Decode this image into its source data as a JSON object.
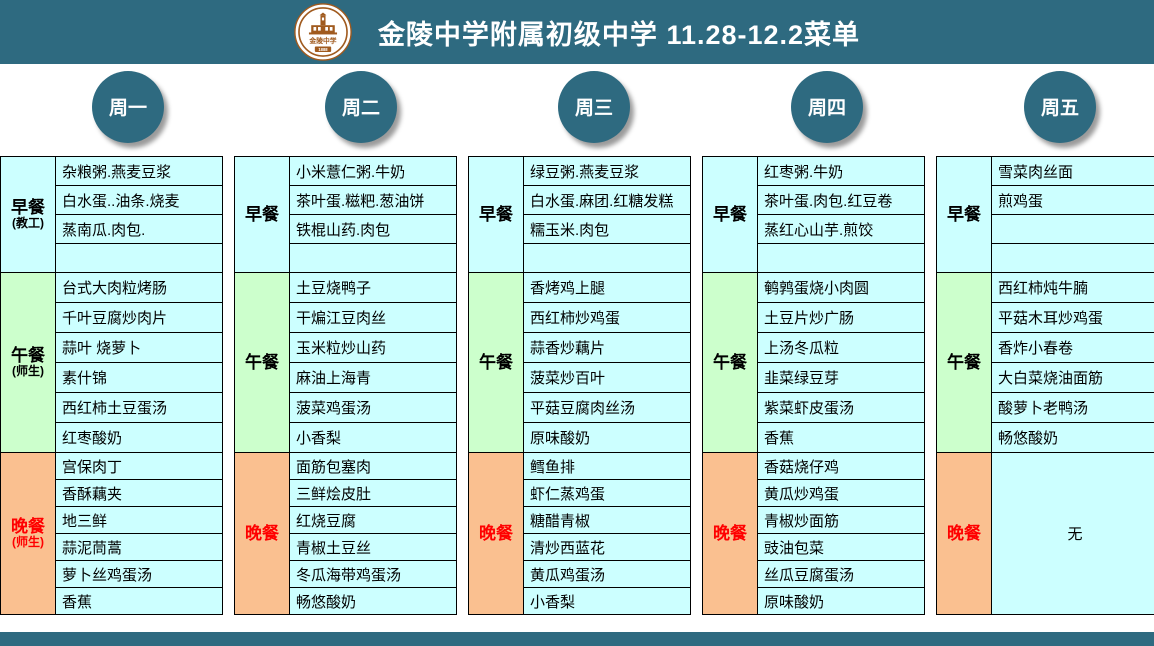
{
  "header": {
    "title": "金陵中学附属初级中学 11.28-12.2菜单"
  },
  "logo": {
    "name": "金陵中学",
    "year": "1888"
  },
  "theme": {
    "header_bg": "#2E6A80",
    "cell_cyan": "#CCFFFF",
    "cell_green": "#CCFFCC",
    "cell_orange": "#FAC090",
    "dinner_text": "#FF0000"
  },
  "days": [
    {
      "name": "周一",
      "breakfast": {
        "label": "早餐",
        "sublabel": "(教工)",
        "items": [
          "杂粮粥.燕麦豆浆",
          "白水蛋..油条.烧麦",
          "蒸南瓜.肉包.",
          ""
        ]
      },
      "lunch": {
        "label": "午餐",
        "sublabel": "(师生)",
        "items": [
          "台式大肉粒烤肠",
          "千叶豆腐炒肉片",
          "蒜叶 烧萝卜",
          "素什锦",
          "西红柿土豆蛋汤",
          "红枣酸奶"
        ]
      },
      "dinner": {
        "label": "晚餐",
        "sublabel": "(师生)",
        "items": [
          "宫保肉丁",
          "香酥藕夹",
          "地三鲜",
          "蒜泥茼蒿",
          "萝卜丝鸡蛋汤",
          "香蕉"
        ]
      }
    },
    {
      "name": "周二",
      "breakfast": {
        "label": "早餐",
        "sublabel": "",
        "items": [
          "小米薏仁粥.牛奶",
          "茶叶蛋.糍粑.葱油饼",
          "铁棍山药.肉包",
          ""
        ]
      },
      "lunch": {
        "label": "午餐",
        "sublabel": "",
        "items": [
          "土豆烧鸭子",
          "干煸江豆肉丝",
          "玉米粒炒山药",
          "麻油上海青",
          "菠菜鸡蛋汤",
          "小香梨"
        ]
      },
      "dinner": {
        "label": "晚餐",
        "sublabel": "",
        "items": [
          "面筋包塞肉",
          "三鲜烩皮肚",
          "红烧豆腐",
          "青椒土豆丝",
          "冬瓜海带鸡蛋汤",
          "畅悠酸奶"
        ]
      }
    },
    {
      "name": "周三",
      "breakfast": {
        "label": "早餐",
        "sublabel": "",
        "items": [
          "绿豆粥.燕麦豆浆",
          "白水蛋.麻团.红糖发糕",
          "糯玉米.肉包",
          ""
        ]
      },
      "lunch": {
        "label": "午餐",
        "sublabel": "",
        "items": [
          "香烤鸡上腿",
          "西红柿炒鸡蛋",
          "蒜香炒藕片",
          "菠菜炒百叶",
          "平菇豆腐肉丝汤",
          "原味酸奶"
        ]
      },
      "dinner": {
        "label": "晚餐",
        "sublabel": "",
        "items": [
          "鳕鱼排",
          "虾仁蒸鸡蛋",
          "糖醋青椒",
          "清炒西蓝花",
          "黄瓜鸡蛋汤",
          "小香梨"
        ]
      }
    },
    {
      "name": "周四",
      "breakfast": {
        "label": "早餐",
        "sublabel": "",
        "items": [
          "红枣粥.牛奶",
          "茶叶蛋.肉包.红豆卷",
          "蒸红心山芋.煎饺",
          ""
        ]
      },
      "lunch": {
        "label": "午餐",
        "sublabel": "",
        "items": [
          "鹌鹑蛋烧小肉圆",
          "土豆片炒广肠",
          "上汤冬瓜粒",
          "韭菜绿豆芽",
          "紫菜虾皮蛋汤",
          "香蕉"
        ]
      },
      "dinner": {
        "label": "晚餐",
        "sublabel": "",
        "items": [
          "香菇烧仔鸡",
          "黄瓜炒鸡蛋",
          "青椒炒面筋",
          "豉油包菜",
          "丝瓜豆腐蛋汤",
          "原味酸奶"
        ]
      }
    },
    {
      "name": "周五",
      "breakfast": {
        "label": "早餐",
        "sublabel": "",
        "items": [
          "雪菜肉丝面",
          "煎鸡蛋",
          "",
          ""
        ]
      },
      "lunch": {
        "label": "午餐",
        "sublabel": "",
        "items": [
          "西红柿炖牛腩",
          "平菇木耳炒鸡蛋",
          "香炸小春卷",
          "大白菜烧油面筋",
          "酸萝卜老鸭汤",
          "畅悠酸奶"
        ]
      },
      "dinner": {
        "label": "晚餐",
        "sublabel": "",
        "merged_text": "无"
      }
    }
  ]
}
